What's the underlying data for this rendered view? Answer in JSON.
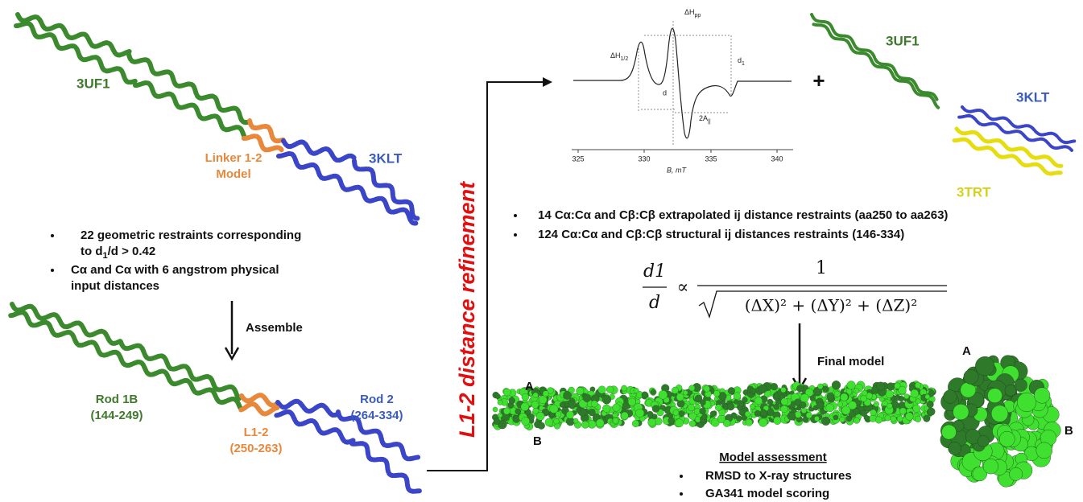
{
  "left": {
    "top_structure": {
      "label_a": "3UF1",
      "linker_lines": [
        "Linker 1-2",
        "Model"
      ],
      "label_b": "3KLT"
    },
    "bullets": [
      {
        "lines": [
          {
            "text": "22 geometric restraints corresponding"
          },
          {
            "text": "to d",
            "sub": "1",
            "after": "/d > 0.42"
          }
        ]
      },
      {
        "lines": [
          {
            "text": "Cα and Cα with 6 angstrom physical"
          },
          {
            "text": "input distances"
          }
        ]
      }
    ],
    "assemble": "Assemble",
    "bottom_structure": {
      "rod1": [
        "Rod 1B",
        "(144-249)"
      ],
      "linker": [
        "L1-2",
        "(250-263)"
      ],
      "rod2": [
        "Rod 2",
        "(264-334)"
      ]
    }
  },
  "refinement": "L1-2 distance refinement",
  "epr": {
    "delta_hpp": "ΔH",
    "delta_hpp_sub": "pp",
    "delta_h12": "ΔH",
    "delta_h12_sub": "1/2",
    "d1": "d",
    "d1_sub": "1",
    "d": "d",
    "two_a": "2A",
    "two_a_sub": "||",
    "ticks": [
      "325",
      "330",
      "335",
      "340"
    ],
    "axis_label": "B, mT"
  },
  "plus": "+",
  "structures": {
    "a": "3UF1",
    "b": "3KLT",
    "c": "3TRT"
  },
  "right_bullets": [
    "14 Cα:Cα  and Cβ:Cβ extrapolated ij distance restraints (aa250 to aa263)",
    "124 Cα:Cα  and Cβ:Cβ structural ij distances restraints (146-334)"
  ],
  "equation": {
    "lhs_num": "d1",
    "lhs_den": "d",
    "relation": "∝",
    "rhs_num": "1",
    "radicand": "(ΔX)² + (ΔY)² + (ΔZ)²"
  },
  "final_model": "Final model",
  "model_labels": {
    "filament_a": "A",
    "filament_b": "B",
    "globule_a": "A",
    "globule_b": "B"
  },
  "assessment": {
    "title": "Model assessment",
    "items": [
      "RMSD to X-ray structures",
      "GA341 model scoring"
    ]
  }
}
